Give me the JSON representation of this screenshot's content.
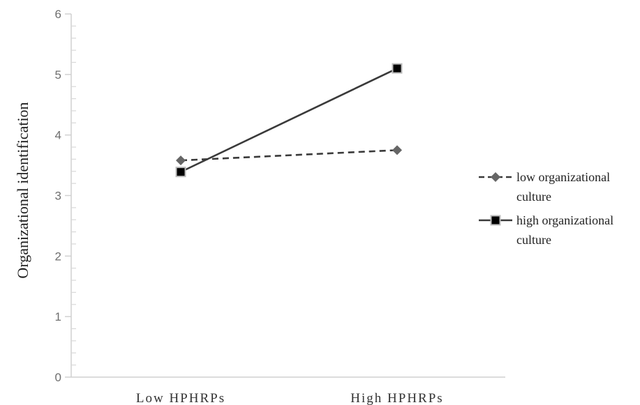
{
  "chart_data": {
    "type": "line",
    "categories": [
      "Low HPHRPs",
      "High HPHRPs"
    ],
    "ylabel": "Organizational identification",
    "ylim": [
      0,
      6
    ],
    "yticks": [
      "0",
      "1",
      "2",
      "3",
      "4",
      "5",
      "6"
    ],
    "grid": false,
    "legend_position": "right",
    "series": [
      {
        "name_lines": [
          "low organizational",
          "culture"
        ],
        "values": [
          3.58,
          3.75
        ],
        "line_style": "dashed",
        "marker": "diamond",
        "color": "#3a3a3a",
        "marker_color": "#666666"
      },
      {
        "name_lines": [
          "high organizational",
          "culture"
        ],
        "values": [
          3.39,
          5.1
        ],
        "line_style": "solid",
        "marker": "square",
        "color": "#3a3a3a",
        "marker_color": "#000000"
      }
    ]
  }
}
